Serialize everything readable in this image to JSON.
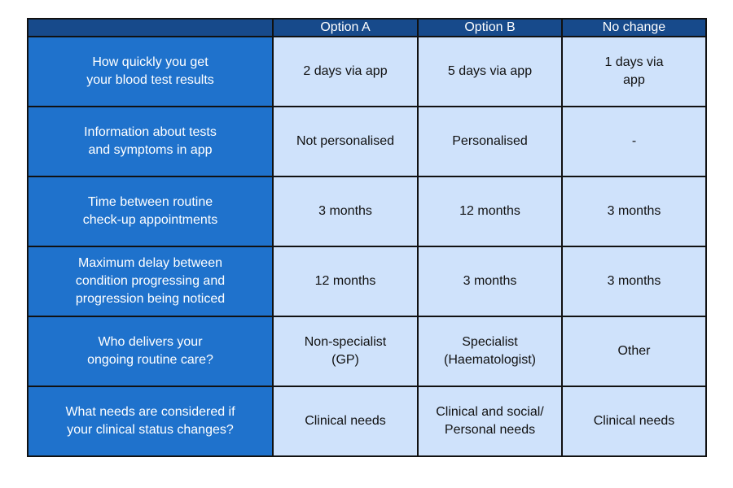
{
  "table": {
    "header": [
      "Option A",
      "Option B",
      "No change"
    ],
    "rows": [
      [
        "How quickly you get\nyour blood test results",
        "2 days via app",
        "5 days via app",
        "1 days via\napp"
      ],
      [
        "Information about tests\nand symptoms in app",
        "Not personalised",
        "Personalised",
        "-"
      ],
      [
        "Time between routine\ncheck-up appointments",
        "3 months",
        "12 months",
        "3 months"
      ],
      [
        "Maximum delay between\ncondition progressing and\nprogression being noticed",
        "12 months",
        "3 months",
        "3 months"
      ],
      [
        "Who delivers your\nongoing routine care?",
        "Non-specialist\n(GP)",
        "Specialist\n(Haematologist)",
        "Other"
      ],
      [
        "What needs are considered if\nyour clinical status changes?",
        "Clinical needs",
        "Clinical and social/\nPersonal needs",
        "Clinical needs"
      ]
    ]
  }
}
